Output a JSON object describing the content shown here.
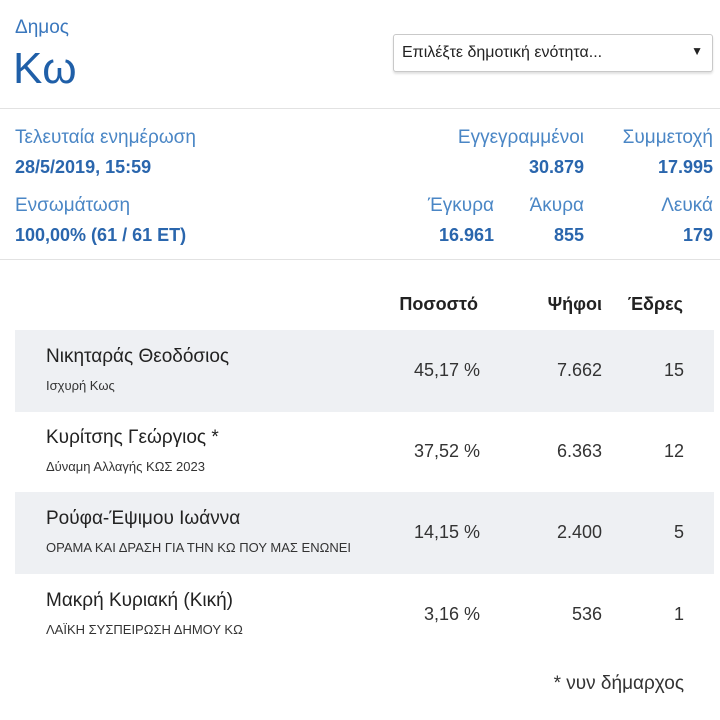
{
  "header": {
    "region_label": "Δημος",
    "region_name": "Κω",
    "select_placeholder": "Επιλέξτε δημοτική ενότητα...",
    "select_arrow": "▼"
  },
  "stats": {
    "last_update_label": "Τελευταία ενημέρωση",
    "last_update_value": "28/5/2019, 15:59",
    "registered_label": "Εγγεγραμμένοι",
    "registered_value": "30.879",
    "turnout_label": "Συμμετοχή",
    "turnout_value": "17.995",
    "incorporation_label": "Ενσωμάτωση",
    "incorporation_value": "100,00% (61 / 61 ΕΤ)",
    "valid_label": "Έγκυρα",
    "valid_value": "16.961",
    "invalid_label": "Άκυρα",
    "invalid_value": "855",
    "blank_label": "Λευκά",
    "blank_value": "179"
  },
  "table": {
    "headers": {
      "percent": "Ποσοστό",
      "votes": "Ψήφοι",
      "seats": "Έδρες"
    },
    "rows": [
      {
        "name": "Νικηταράς Θεοδόσιος",
        "party": "Ισχυρή Κως",
        "percent": "45,17 %",
        "votes": "7.662",
        "seats": "15"
      },
      {
        "name": "Κυρίτσης Γεώργιος *",
        "party": "Δύναμη Αλλαγής ΚΩΣ 2023",
        "percent": "37,52 %",
        "votes": "6.363",
        "seats": "12"
      },
      {
        "name": "Ρούφα-Έψιμου Ιωάννα",
        "party": "ΟΡΑΜΑ ΚΑΙ ΔΡΑΣΗ ΓΙΑ ΤΗΝ ΚΩ ΠΟΥ ΜΑΣ ΕΝΩΝΕΙ",
        "percent": "14,15 %",
        "votes": "2.400",
        "seats": "5"
      },
      {
        "name": "Μακρή Κυριακή (Κική)",
        "party": "ΛΑΪΚΗ ΣΥΣΠΕΙΡΩΣΗ ΔΗΜΟΥ ΚΩ",
        "percent": "3,16 %",
        "votes": "536",
        "seats": "1"
      }
    ]
  },
  "footnote": "* νυν δήμαρχος"
}
